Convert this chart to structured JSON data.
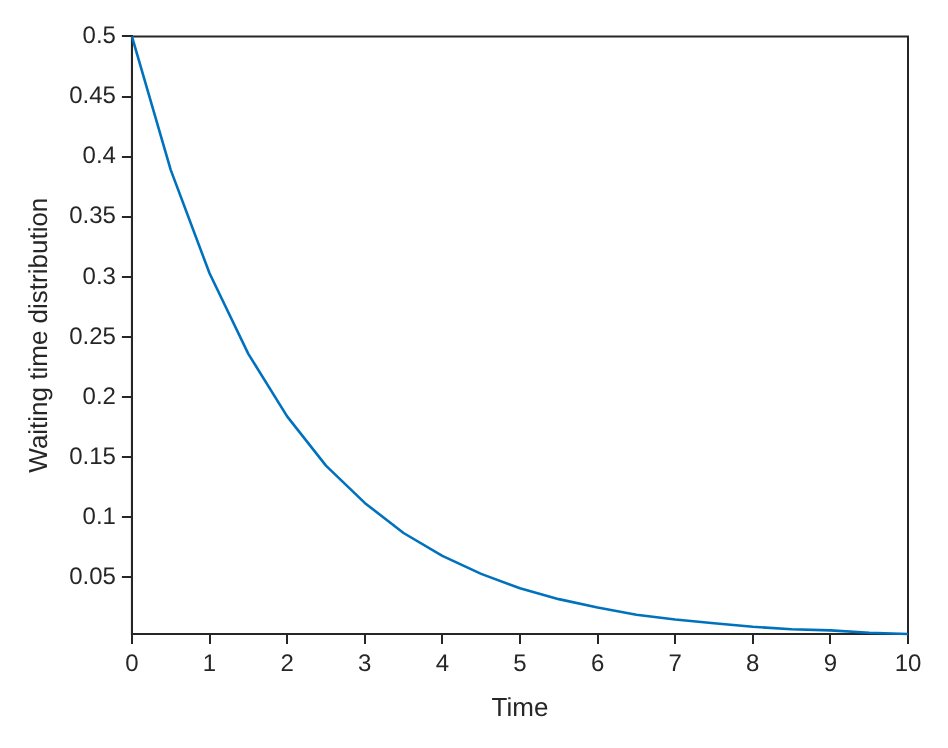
{
  "chart_data": {
    "type": "line",
    "xlabel": "Time",
    "ylabel": "Waiting time distribution",
    "x": [
      0,
      0.5,
      1,
      1.5,
      2,
      2.5,
      3,
      3.5,
      4,
      4.5,
      5,
      5.5,
      6,
      6.5,
      7,
      7.5,
      8,
      8.5,
      9,
      9.5,
      10
    ],
    "series": [
      {
        "color": "#0072bd",
        "values": [
          0.5,
          0.389,
          0.303,
          0.236,
          0.184,
          0.143,
          0.112,
          0.087,
          0.068,
          0.053,
          0.041,
          0.032,
          0.025,
          0.019,
          0.015,
          0.012,
          0.009,
          0.007,
          0.006,
          0.004,
          0.003
        ]
      }
    ],
    "xlim": [
      0,
      10
    ],
    "xticks": [
      0,
      1,
      2,
      3,
      4,
      5,
      6,
      7,
      8,
      9,
      10
    ],
    "ylim": [
      0.003,
      0.5
    ],
    "yticks": [
      0.05,
      0.1,
      0.15,
      0.2,
      0.25,
      0.3,
      0.35,
      0.4,
      0.45,
      0.5
    ],
    "grid": false,
    "legend": false,
    "marker": "none",
    "line_style": "solid"
  }
}
